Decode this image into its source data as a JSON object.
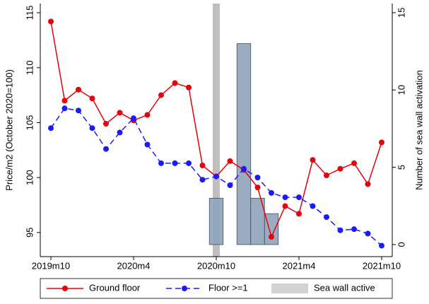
{
  "chart_data": {
    "type": "line",
    "categories": [
      "2019m10",
      null,
      null,
      null,
      null,
      null,
      "2020m4",
      null,
      null,
      null,
      null,
      null,
      "2020m10",
      null,
      null,
      null,
      null,
      null,
      "2021m4",
      null,
      null,
      null,
      null,
      null,
      "2021m10"
    ],
    "series": [
      {
        "name": "Ground floor",
        "type": "line",
        "color": "#e8000b",
        "dash": false,
        "values": [
          114.2,
          107.0,
          108.0,
          107.2,
          104.9,
          105.9,
          105.2,
          105.7,
          107.5,
          108.6,
          108.2,
          101.1,
          100.1,
          101.5,
          100.7,
          99.1,
          94.6,
          97.4,
          96.7,
          101.6,
          100.2,
          100.8,
          101.3,
          99.4,
          103.2
        ]
      },
      {
        "name": "Floor >=1",
        "type": "line",
        "color": "#1a1aff",
        "dash": true,
        "values": [
          104.5,
          106.3,
          106.1,
          104.5,
          102.6,
          104.1,
          105.4,
          103.0,
          101.3,
          101.3,
          101.3,
          99.8,
          100.1,
          99.3,
          100.8,
          100.0,
          98.6,
          98.2,
          98.2,
          97.4,
          96.4,
          95.2,
          95.3,
          94.9,
          93.8
        ]
      },
      {
        "name": "Sea wall active",
        "type": "bar",
        "axis": "y2",
        "color": "#8fa3ba",
        "values": [
          null,
          null,
          null,
          null,
          null,
          null,
          null,
          null,
          null,
          null,
          null,
          null,
          3,
          null,
          13,
          3,
          2,
          null,
          null,
          null,
          null,
          null,
          null,
          null,
          null
        ]
      }
    ],
    "shaded_period": {
      "category": "2020m10",
      "color": "#bfbfbf"
    },
    "ylabel": "Price/m2 (October 2020=100)",
    "y2label": "Number of sea wall activation",
    "ylim": [
      92.8,
      115.84
    ],
    "yticks": [
      95,
      100,
      105,
      110,
      115
    ],
    "y2lim": [
      -0.78,
      15.59
    ],
    "y2ticks": [
      0,
      5,
      10,
      15
    ],
    "legend": "bottom"
  }
}
